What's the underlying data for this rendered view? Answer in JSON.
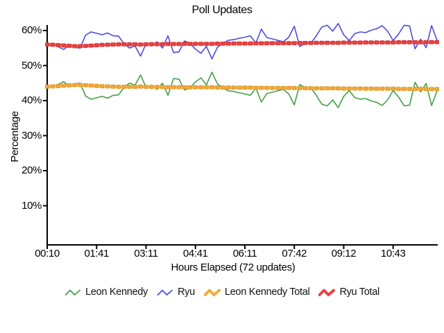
{
  "chart_data": {
    "type": "line",
    "title": "Poll Updates",
    "xlabel": "Hours Elapsed (72 updates)",
    "ylabel": "Percentage",
    "updates": 72,
    "grid": false,
    "legend_position": "bottom",
    "ylim": [
      0,
      62
    ],
    "y_ticks": [
      60,
      50,
      40,
      30,
      20,
      10
    ],
    "y_tick_suffix": "%",
    "x_tick_labels": [
      "00:10",
      "01:41",
      "03:11",
      "04:41",
      "06:11",
      "07:42",
      "09:12",
      "10:43"
    ],
    "x_tick_updates": [
      1,
      10,
      19,
      28,
      37,
      46,
      55,
      64
    ],
    "axis_color": "#000000",
    "background_color": "#ffffff",
    "series": [
      {
        "name": "Leon Kennedy",
        "color": "#43A047",
        "style": "thin",
        "values": [
          43.7,
          43.9,
          44.6,
          45.4,
          44.2,
          44.8,
          45.0,
          41.3,
          40.4,
          40.8,
          41.2,
          40.7,
          41.5,
          41.6,
          43.8,
          45.0,
          44.4,
          47.3,
          43.8,
          44.4,
          43.2,
          45.0,
          41.5,
          46.3,
          46.1,
          43.0,
          43.6,
          45.3,
          46.5,
          44.5,
          48.1,
          44.8,
          43.6,
          42.8,
          42.6,
          42.2,
          41.9,
          41.5,
          43.6,
          39.6,
          42.0,
          42.4,
          42.8,
          43.2,
          41.9,
          38.8,
          44.6,
          43.7,
          43.7,
          41.5,
          39.0,
          38.5,
          40.2,
          38.0,
          41.2,
          42.9,
          40.9,
          40.4,
          40.6,
          39.9,
          39.5,
          38.6,
          40.2,
          42.9,
          41.0,
          38.5,
          38.7,
          45.2,
          42.5,
          44.9,
          38.6,
          42.8
        ]
      },
      {
        "name": "Ryu",
        "color": "#4B4BDC",
        "style": "thin",
        "values": [
          56.3,
          56.1,
          55.4,
          54.6,
          55.8,
          55.2,
          55.0,
          58.7,
          59.6,
          59.2,
          58.8,
          59.3,
          58.5,
          58.4,
          56.2,
          55.0,
          55.6,
          52.7,
          56.2,
          55.6,
          56.8,
          55.0,
          58.5,
          53.7,
          53.9,
          57.0,
          56.4,
          54.7,
          53.5,
          55.5,
          51.9,
          55.2,
          56.4,
          57.2,
          57.4,
          57.8,
          58.1,
          58.5,
          56.4,
          60.4,
          58.0,
          57.6,
          57.2,
          56.8,
          58.1,
          61.2,
          55.4,
          56.3,
          56.3,
          58.5,
          61.0,
          61.5,
          59.8,
          62.0,
          58.8,
          57.1,
          59.1,
          59.6,
          59.4,
          60.1,
          60.5,
          61.4,
          59.8,
          57.1,
          59.0,
          61.5,
          61.3,
          54.8,
          57.5,
          55.1,
          61.4,
          57.2
        ]
      },
      {
        "name": "Leon Kennedy Total",
        "color": "#F2A93C",
        "line_color": "#F6B85A",
        "marker_stroke": "#DC921F",
        "style": "thick",
        "values": [
          44.0,
          44.05,
          44.15,
          44.25,
          44.35,
          44.45,
          44.45,
          44.4,
          44.3,
          44.2,
          44.1,
          44.05,
          44.0,
          43.95,
          43.95,
          43.95,
          43.95,
          44.0,
          43.95,
          43.9,
          43.9,
          43.9,
          43.85,
          43.85,
          43.85,
          43.8,
          43.8,
          43.8,
          43.8,
          43.8,
          43.8,
          43.75,
          43.75,
          43.75,
          43.7,
          43.7,
          43.7,
          43.7,
          43.65,
          43.65,
          43.65,
          43.6,
          43.6,
          43.6,
          43.6,
          43.6,
          43.55,
          43.55,
          43.55,
          43.5,
          43.5,
          43.5,
          43.5,
          43.5,
          43.45,
          43.45,
          43.45,
          43.45,
          43.4,
          43.4,
          43.4,
          43.4,
          43.4,
          43.4,
          43.35,
          43.35,
          43.35,
          43.35,
          43.35,
          43.3,
          43.3,
          43.3
        ]
      },
      {
        "name": "Ryu Total",
        "color": "#EC4242",
        "line_color": "#F05C5C",
        "marker_stroke": "#CE2E2E",
        "style": "thick",
        "values": [
          56.0,
          55.95,
          55.85,
          55.75,
          55.65,
          55.55,
          55.55,
          55.6,
          55.7,
          55.8,
          55.9,
          55.95,
          56.0,
          56.05,
          56.05,
          56.05,
          56.05,
          56.0,
          56.05,
          56.1,
          56.1,
          56.1,
          56.15,
          56.15,
          56.15,
          56.2,
          56.2,
          56.2,
          56.2,
          56.2,
          56.2,
          56.25,
          56.25,
          56.25,
          56.3,
          56.3,
          56.3,
          56.3,
          56.35,
          56.35,
          56.35,
          56.4,
          56.4,
          56.4,
          56.4,
          56.4,
          56.45,
          56.45,
          56.45,
          56.5,
          56.5,
          56.5,
          56.5,
          56.5,
          56.55,
          56.55,
          56.55,
          56.55,
          56.6,
          56.6,
          56.6,
          56.6,
          56.6,
          56.6,
          56.65,
          56.65,
          56.65,
          56.65,
          56.65,
          56.7,
          56.7,
          56.7
        ]
      }
    ]
  }
}
